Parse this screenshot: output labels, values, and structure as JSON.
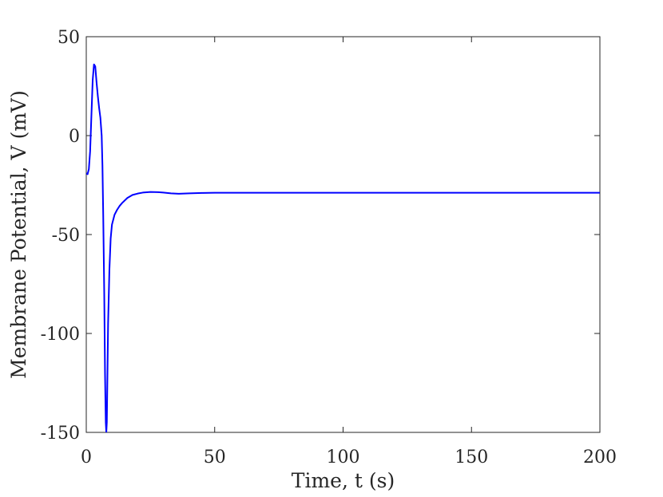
{
  "chart_data": {
    "type": "line",
    "title": "",
    "xlabel": "Time, t (s)",
    "ylabel": "Membrane Potential, V (mV)",
    "xlim": [
      0,
      200
    ],
    "ylim": [
      -150,
      50
    ],
    "xticks": [
      0,
      50,
      100,
      150,
      200
    ],
    "yticks": [
      50,
      0,
      -50,
      -100,
      -150
    ],
    "xtick_labels": [
      "0",
      "50",
      "100",
      "150",
      "200"
    ],
    "ytick_labels": [
      "50",
      "0",
      "-50",
      "-100",
      "-150"
    ],
    "grid": false,
    "legend": "none",
    "series": [
      {
        "color": "#0000ff",
        "x": [
          0,
          0.5,
          1,
          1.5,
          2,
          2.5,
          3,
          3.5,
          4,
          4.5,
          5,
          5.5,
          6,
          6.3,
          6.6,
          7,
          7.3,
          7.6,
          7.8,
          8,
          8.2,
          8.5,
          9,
          9.5,
          10,
          11,
          12,
          13,
          14,
          16,
          18,
          20,
          22,
          25,
          28,
          30,
          33,
          36,
          40,
          45,
          50,
          60,
          80,
          100,
          150,
          200
        ],
        "y": [
          -19,
          -19.5,
          -17,
          -8,
          10,
          28,
          36,
          35,
          27,
          20,
          14,
          9,
          0,
          -15,
          -40,
          -80,
          -120,
          -145,
          -150,
          -145,
          -125,
          -95,
          -68,
          -52,
          -45,
          -40,
          -37.5,
          -35.5,
          -34,
          -31.5,
          -30,
          -29.3,
          -28.8,
          -28.5,
          -28.6,
          -28.8,
          -29.2,
          -29.4,
          -29.2,
          -29.0,
          -28.9,
          -28.9,
          -28.9,
          -28.9,
          -28.9,
          -28.9
        ]
      }
    ]
  }
}
